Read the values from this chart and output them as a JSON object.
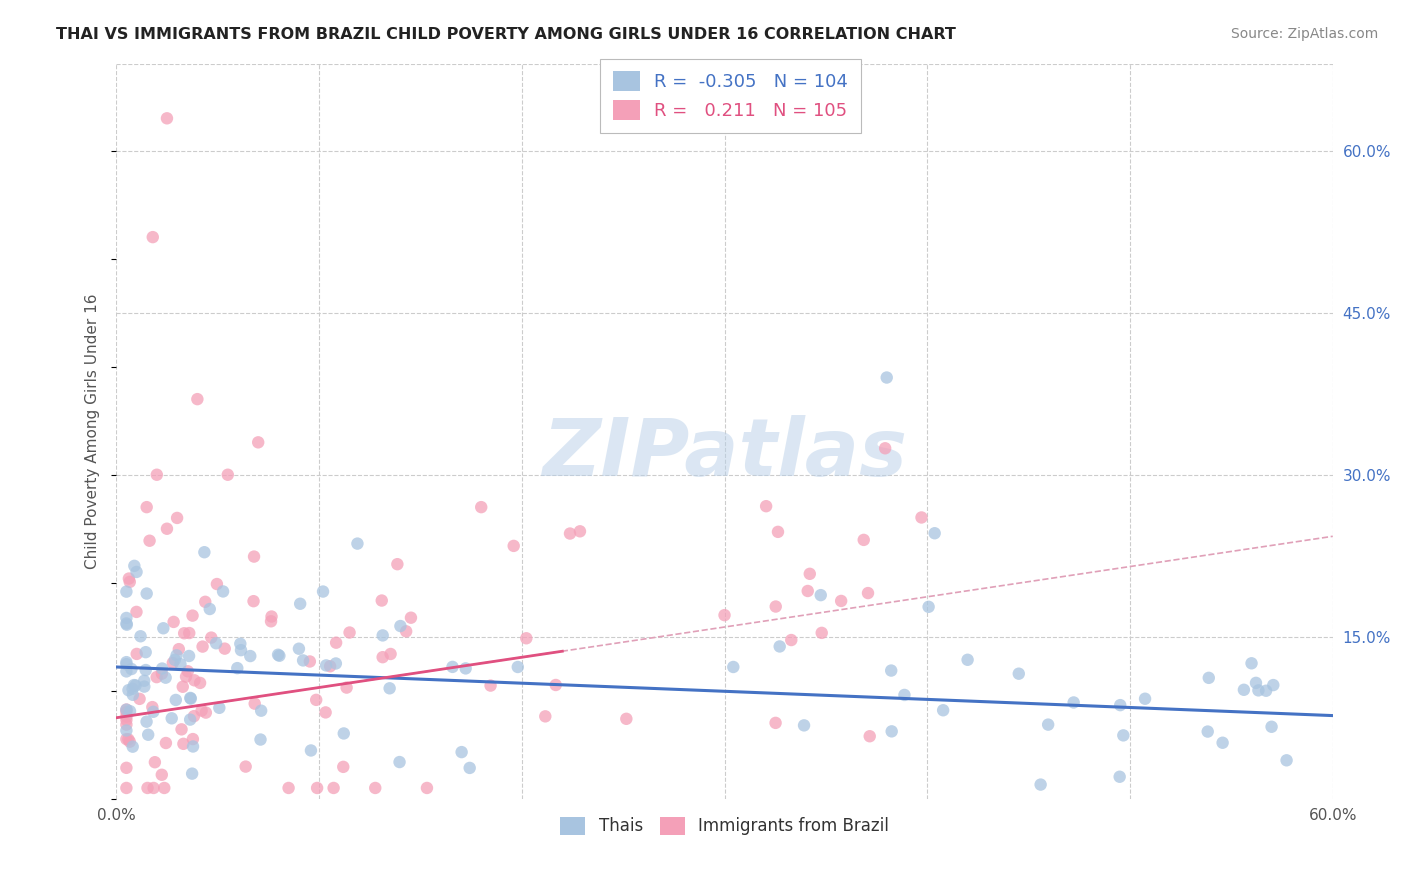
{
  "title": "THAI VS IMMIGRANTS FROM BRAZIL CHILD POVERTY AMONG GIRLS UNDER 16 CORRELATION CHART",
  "source": "Source: ZipAtlas.com",
  "ylabel": "Child Poverty Among Girls Under 16",
  "xlim": [
    0.0,
    0.6
  ],
  "ylim": [
    0.0,
    0.68
  ],
  "xticks": [
    0.0,
    0.1,
    0.2,
    0.3,
    0.4,
    0.5,
    0.6
  ],
  "xticklabels": [
    "0.0%",
    "",
    "",
    "",
    "",
    "",
    "60.0%"
  ],
  "yticks_right": [
    0.15,
    0.3,
    0.45,
    0.6
  ],
  "ytick_labels_right": [
    "15.0%",
    "30.0%",
    "45.0%",
    "60.0%"
  ],
  "background_color": "#ffffff",
  "grid_color": "#cccccc",
  "watermark": "ZIPatlas",
  "color_thai": "#a8c4e0",
  "color_brazil": "#f4a0b8",
  "line_color_thai": "#4472c4",
  "line_color_brazil": "#e05080",
  "line_color_brazil_dash": "#e0a0b8",
  "scatter_alpha": 0.75,
  "scatter_size": 80,
  "thai_R": -0.305,
  "thai_N": 104,
  "brazil_R": 0.211,
  "brazil_N": 105,
  "thai_slope": -0.075,
  "thai_intercept": 0.122,
  "brazil_slope": 0.28,
  "brazil_intercept": 0.075,
  "seed": 42
}
